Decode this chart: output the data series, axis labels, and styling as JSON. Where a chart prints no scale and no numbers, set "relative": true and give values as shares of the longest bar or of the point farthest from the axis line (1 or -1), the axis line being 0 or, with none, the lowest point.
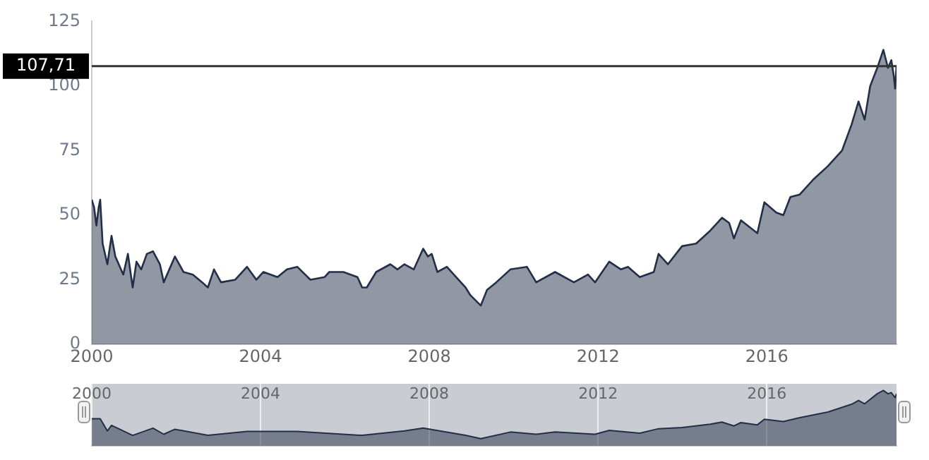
{
  "chart_data": [
    {
      "type": "area",
      "x": [
        "2000-01-01",
        "2000-01-21",
        "2000-02-10",
        "2000-03-01",
        "2000-03-14",
        "2000-04-04",
        "2000-05-15",
        "2000-06-20",
        "2000-07-23",
        "2000-09-30",
        "2000-11-09",
        "2000-12-20",
        "2001-01-22",
        "2001-03-04",
        "2001-04-22",
        "2001-06-14",
        "2001-08-13",
        "2001-09-15",
        "2001-12-21",
        "2002-03-05",
        "2002-05-25",
        "2002-08-14",
        "2002-10-02",
        "2002-11-24",
        "2003-01-24",
        "2003-05-27",
        "2003-09-06",
        "2003-11-26",
        "2004-01-26",
        "2004-05-27",
        "2004-08-17",
        "2004-11-14",
        "2005-03-08",
        "2005-07-08",
        "2005-08-18",
        "2005-12-18",
        "2006-04-19",
        "2006-05-30",
        "2006-07-09",
        "2006-09-28",
        "2007-01-29",
        "2007-03-31",
        "2007-05-31",
        "2007-08-20",
        "2007-11-09",
        "2007-12-20",
        "2008-01-22",
        "2008-03-11",
        "2008-06-01",
        "2008-08-21",
        "2008-11-10",
        "2008-12-22",
        "2009-03-22",
        "2009-05-14",
        "2009-08-03",
        "2009-12-03",
        "2010-04-25",
        "2010-07-15",
        "2010-12-25",
        "2011-06-06",
        "2011-10-06",
        "2011-12-06",
        "2012-04-07",
        "2012-07-17",
        "2012-09-16",
        "2012-12-27",
        "2013-04-28",
        "2013-06-08",
        "2013-08-28",
        "2013-12-28",
        "2014-04-29",
        "2014-08-29",
        "2014-12-09",
        "2015-02-09",
        "2015-03-22",
        "2015-05-22",
        "2015-10-11",
        "2015-12-11",
        "2016-03-23",
        "2016-05-23",
        "2016-07-23",
        "2016-10-12",
        "2017-02-11",
        "2017-06-13",
        "2017-10-13",
        "2018-01-03",
        "2018-03-05",
        "2018-04-27",
        "2018-06-14",
        "2018-08-14",
        "2018-10-06",
        "2018-11-15",
        "2018-12-14",
        "2019-01-04",
        "2019-01-16",
        "2019-01-28"
      ],
      "series": [
        {
          "color": "#232f48",
          "values": [
            56,
            53,
            46,
            53,
            56,
            39,
            31,
            42,
            34,
            27,
            35,
            22,
            32,
            29,
            35,
            36,
            31,
            24,
            34,
            28,
            27,
            24,
            22,
            29,
            24,
            25,
            30,
            25,
            28,
            26,
            29,
            30,
            25,
            26,
            28,
            28,
            26,
            22,
            22,
            28,
            31,
            29,
            31,
            29,
            37,
            34,
            35,
            28,
            30,
            26,
            22,
            19,
            15,
            21,
            24,
            29,
            30,
            24,
            28,
            24,
            27,
            24,
            32,
            29,
            30,
            26,
            28,
            35,
            31,
            38,
            39,
            44,
            49,
            47,
            41,
            48,
            43,
            55,
            51,
            50,
            57,
            58,
            64,
            69,
            75,
            85,
            94,
            87,
            100,
            107,
            114,
            107,
            110,
            104,
            99,
            108
          ]
        }
      ],
      "xlim": [
        "2000-01-01",
        "2019-01-28"
      ],
      "xticks": [
        "2000",
        "2004",
        "2008",
        "2012",
        "2016"
      ],
      "ylim": [
        0,
        125
      ],
      "yticks": [
        0,
        25,
        50,
        75,
        100,
        125
      ],
      "grid": false,
      "legend": false,
      "ref_lines": [
        {
          "axis": "y",
          "value": 107.71,
          "label": "107,71",
          "color": "#333333"
        }
      ]
    },
    {
      "type": "area",
      "x": [
        "2000-01-01",
        "2000-03-14",
        "2000-05-15",
        "2000-06-20",
        "2000-12-20",
        "2001-06-14",
        "2001-09-15",
        "2001-12-21",
        "2002-10-02",
        "2003-09-06",
        "2004-11-14",
        "2006-05-30",
        "2007-05-31",
        "2007-11-09",
        "2008-11-10",
        "2009-03-22",
        "2009-12-03",
        "2010-07-15",
        "2010-12-25",
        "2011-12-06",
        "2012-04-07",
        "2012-12-27",
        "2013-06-08",
        "2013-12-28",
        "2014-08-29",
        "2014-12-09",
        "2015-03-22",
        "2015-05-22",
        "2015-10-11",
        "2015-12-11",
        "2016-05-23",
        "2016-10-12",
        "2017-06-13",
        "2018-01-03",
        "2018-03-05",
        "2018-04-27",
        "2018-08-14",
        "2018-10-06",
        "2018-11-15",
        "2018-12-14",
        "2019-01-16",
        "2019-01-28"
      ],
      "series": [
        {
          "color": "#232f48",
          "values": [
            0.49,
            0.49,
            0.27,
            0.37,
            0.19,
            0.32,
            0.21,
            0.3,
            0.19,
            0.26,
            0.26,
            0.19,
            0.27,
            0.32,
            0.19,
            0.13,
            0.25,
            0.21,
            0.25,
            0.21,
            0.28,
            0.23,
            0.31,
            0.33,
            0.39,
            0.43,
            0.36,
            0.42,
            0.38,
            0.48,
            0.44,
            0.51,
            0.61,
            0.75,
            0.82,
            0.76,
            0.94,
            1,
            0.94,
            0.96,
            0.87,
            0.94
          ]
        }
      ],
      "xlim": [
        "2000-01-01",
        "2019-01-28"
      ],
      "xticks": [
        "2000",
        "2004",
        "2008",
        "2012",
        "2016"
      ],
      "relative": true,
      "grid": "x",
      "legend": false,
      "tick_labels": "x"
    }
  ]
}
